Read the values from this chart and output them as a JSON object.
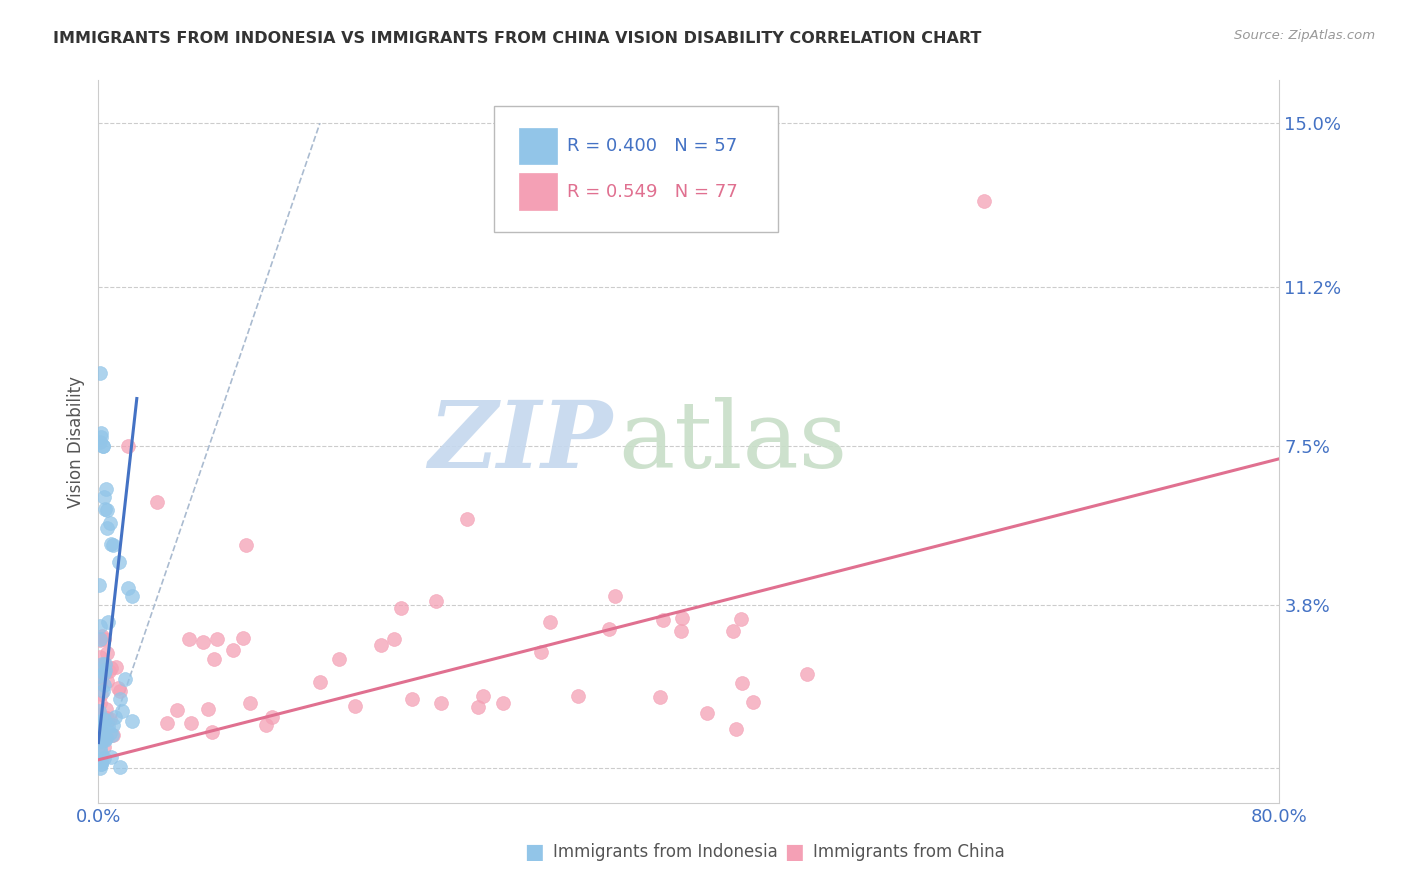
{
  "title": "IMMIGRANTS FROM INDONESIA VS IMMIGRANTS FROM CHINA VISION DISABILITY CORRELATION CHART",
  "source": "Source: ZipAtlas.com",
  "ylabel": "Vision Disability",
  "xlim": [
    0.0,
    0.8
  ],
  "ylim": [
    -0.008,
    0.16
  ],
  "yticks": [
    0.0,
    0.038,
    0.075,
    0.112,
    0.15
  ],
  "ytick_labels": [
    "",
    "3.8%",
    "7.5%",
    "11.2%",
    "15.0%"
  ],
  "legend_R_indonesia": "R = 0.400",
  "legend_N_indonesia": "N = 57",
  "legend_R_china": "R = 0.549",
  "legend_N_china": "N = 77",
  "color_indonesia": "#92C5E8",
  "color_china": "#F4A0B5",
  "line_color_indonesia": "#4472C4",
  "line_color_china": "#E07090",
  "diagonal_color": "#AABBD0",
  "background_color": "#FFFFFF",
  "grid_color": "#CCCCCC",
  "axis_label_color": "#4472C4",
  "watermark_zip": "#C8D8F0",
  "watermark_atlas": "#D0E8D0",
  "indo_line_x": [
    0.0,
    0.026
  ],
  "indo_line_y": [
    0.006,
    0.086
  ],
  "china_line_x": [
    0.0,
    0.8
  ],
  "china_line_y": [
    0.002,
    0.072
  ],
  "diag_line_x": [
    0.0,
    0.15
  ],
  "diag_line_y": [
    0.0,
    0.15
  ]
}
